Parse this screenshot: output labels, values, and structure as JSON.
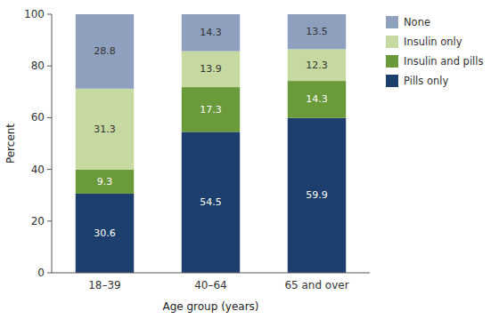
{
  "chart_data": {
    "type": "bar",
    "stacked": true,
    "categories": [
      "18–39",
      "40–64",
      "65 and over"
    ],
    "series": [
      {
        "name": "Pills only",
        "color": "#1c3f6e",
        "values": [
          30.6,
          54.5,
          59.9
        ]
      },
      {
        "name": "Insulin and pills",
        "color": "#6a9a3a",
        "values": [
          9.3,
          17.3,
          14.3
        ]
      },
      {
        "name": "Insulin only",
        "color": "#c5d9a0",
        "values": [
          31.3,
          13.9,
          12.3
        ]
      },
      {
        "name": "None",
        "color": "#8fa0be",
        "values": [
          28.8,
          14.3,
          13.5
        ]
      }
    ],
    "xlabel": "Age group (years)",
    "ylabel": "Percent",
    "ylim": [
      0,
      100
    ],
    "yticks": [
      0,
      20,
      40,
      60,
      80,
      100
    ],
    "grid": false,
    "legend": "right",
    "data_labels": true
  }
}
